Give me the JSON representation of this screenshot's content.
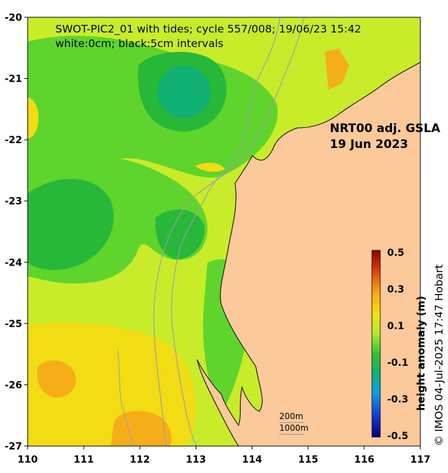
{
  "map": {
    "title_line1": "SWOT-PIC2_01 with tides; cycle 557/008; 19/06/23 15:42",
    "title_line2": "white:0cm; black:5cm intervals",
    "product_label_line1": "NRT00 adj. GSLA",
    "product_label_line2": "19 Jun 2023",
    "credit": "© IMOS 04-Jul-2025 17:47 Hobart",
    "depth_legend": [
      "200m",
      "1000m"
    ],
    "x_ticks": [
      "110",
      "111",
      "112",
      "113",
      "114",
      "115",
      "116",
      "117"
    ],
    "y_ticks": [
      "-20",
      "-21",
      "-22",
      "-23",
      "-24",
      "-25",
      "-26",
      "-27"
    ],
    "x_range": [
      110,
      117
    ],
    "y_range": [
      -27,
      -20
    ]
  },
  "colorbar": {
    "label": "height anomaly (m)",
    "ticks": [
      "0.5",
      "0.3",
      "0.1",
      "-0.1",
      "-0.3",
      "-0.5"
    ],
    "range": [
      -0.5,
      0.5
    ]
  },
  "colors": {
    "land": "#fcc99a",
    "sea_yellow_green": "#c8ec2a",
    "sea_green": "#5fd42c",
    "sea_dark_green": "#27b83a",
    "sea_teal": "#10b073",
    "sea_yellow": "#f2dc14",
    "sea_orange": "#f6ad1a"
  }
}
